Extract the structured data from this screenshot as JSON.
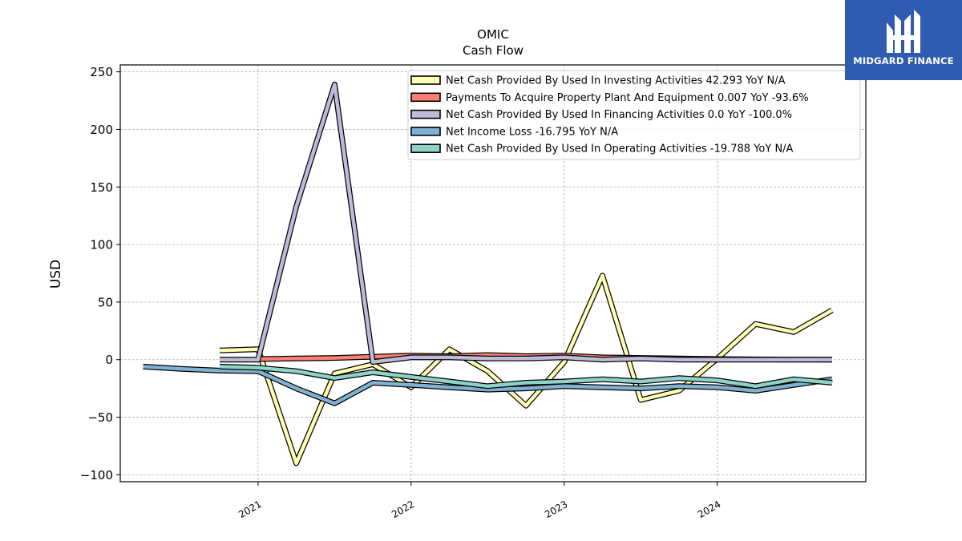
{
  "brand": {
    "name": "MIDGARD FINANCE",
    "bg": "#2f5bb1"
  },
  "chart_data": {
    "type": "line",
    "title": "OMIC",
    "subtitle": "Cash Flow",
    "ylabel": "USD",
    "xlabel": "",
    "ylim": [
      -106,
      256
    ],
    "xlim": [
      2020.1,
      2024.97
    ],
    "yticks": [
      -100,
      -50,
      0,
      50,
      100,
      150,
      200,
      250
    ],
    "ytick_labels": [
      "−100",
      "−50",
      "0",
      "50",
      "100",
      "150",
      "200",
      "250"
    ],
    "xticks": [
      2021,
      2022,
      2023,
      2024
    ],
    "xtick_labels": [
      "2021",
      "2022",
      "2023",
      "2024"
    ],
    "grid": true,
    "legend_position": "top-right",
    "series": [
      {
        "name": "Net Cash Provided By Used In Investing Activities  42.293 YoY N/A",
        "color": "#ffffb3",
        "points": [
          [
            2020.75,
            8
          ],
          [
            2021.0,
            9
          ],
          [
            2021.25,
            -90
          ],
          [
            2021.5,
            -12
          ],
          [
            2021.75,
            -4
          ],
          [
            2022.0,
            -24
          ],
          [
            2022.25,
            9
          ],
          [
            2022.5,
            -10
          ],
          [
            2022.75,
            -40
          ],
          [
            2023.0,
            -2
          ],
          [
            2023.25,
            73
          ],
          [
            2023.5,
            -35
          ],
          [
            2023.75,
            -27
          ],
          [
            2024.0,
            1
          ],
          [
            2024.25,
            31
          ],
          [
            2024.5,
            24
          ],
          [
            2024.75,
            43
          ]
        ]
      },
      {
        "name": "Payments To Acquire Property Plant And Equipment  0.007 YoY -93.6%",
        "color": "#fb8072",
        "points": [
          [
            2021.0,
            0.5
          ],
          [
            2021.25,
            1
          ],
          [
            2021.5,
            1.5
          ],
          [
            2021.75,
            2.5
          ],
          [
            2022.0,
            3.5
          ],
          [
            2022.25,
            3
          ],
          [
            2022.5,
            4
          ],
          [
            2022.75,
            3
          ],
          [
            2023.0,
            3.5
          ],
          [
            2023.25,
            2
          ],
          [
            2023.5,
            1.5
          ],
          [
            2023.75,
            1
          ],
          [
            2024.0,
            0.5
          ],
          [
            2024.25,
            0.2
          ],
          [
            2024.5,
            0.1
          ],
          [
            2024.75,
            0
          ]
        ]
      },
      {
        "name": "Net Cash Provided By Used In Financing Activities  0.0 YoY -100.0%",
        "color": "#bebada",
        "points": [
          [
            2020.75,
            0
          ],
          [
            2021.0,
            0
          ],
          [
            2021.25,
            133
          ],
          [
            2021.5,
            239
          ],
          [
            2021.75,
            -2
          ],
          [
            2022.0,
            2
          ],
          [
            2022.25,
            2
          ],
          [
            2022.5,
            1
          ],
          [
            2022.75,
            1
          ],
          [
            2023.0,
            2
          ],
          [
            2023.25,
            0
          ],
          [
            2023.5,
            1
          ],
          [
            2023.75,
            0
          ],
          [
            2024.0,
            0
          ],
          [
            2024.25,
            0
          ],
          [
            2024.5,
            0
          ],
          [
            2024.75,
            0
          ]
        ]
      },
      {
        "name": "Net Income Loss  -16.795 YoY N/A",
        "color": "#80b1d3",
        "points": [
          [
            2020.25,
            -6
          ],
          [
            2020.5,
            -8
          ],
          [
            2020.75,
            -9.5
          ],
          [
            2021.0,
            -10
          ],
          [
            2021.25,
            -25
          ],
          [
            2021.5,
            -38
          ],
          [
            2021.75,
            -20
          ],
          [
            2022.0,
            -22
          ],
          [
            2022.25,
            -24
          ],
          [
            2022.5,
            -26
          ],
          [
            2022.75,
            -25
          ],
          [
            2023.0,
            -23
          ],
          [
            2023.25,
            -24
          ],
          [
            2023.5,
            -25
          ],
          [
            2023.75,
            -23
          ],
          [
            2024.0,
            -24
          ],
          [
            2024.25,
            -27
          ],
          [
            2024.5,
            -22
          ],
          [
            2024.75,
            -17
          ]
        ]
      },
      {
        "name": "Net Cash Provided By Used In Operating Activities  -19.788 YoY N/A",
        "color": "#8dd3c7",
        "points": [
          [
            2020.75,
            -6
          ],
          [
            2021.0,
            -7
          ],
          [
            2021.25,
            -10
          ],
          [
            2021.5,
            -16
          ],
          [
            2021.75,
            -11
          ],
          [
            2022.0,
            -15
          ],
          [
            2022.25,
            -19
          ],
          [
            2022.5,
            -23
          ],
          [
            2022.75,
            -20
          ],
          [
            2023.0,
            -19
          ],
          [
            2023.25,
            -17
          ],
          [
            2023.5,
            -19
          ],
          [
            2023.75,
            -16
          ],
          [
            2024.0,
            -18
          ],
          [
            2024.25,
            -23
          ],
          [
            2024.5,
            -17
          ],
          [
            2024.75,
            -20
          ]
        ]
      }
    ]
  }
}
